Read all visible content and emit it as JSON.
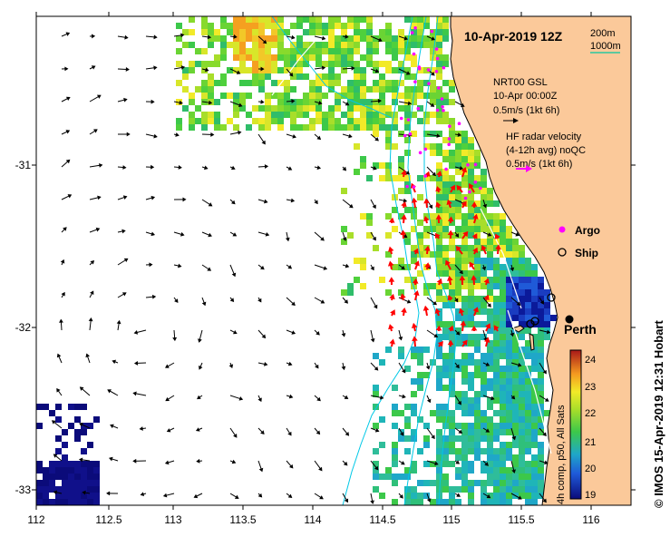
{
  "title": "10-Apr-2019 12Z",
  "depth_legend": {
    "line1": "200m",
    "line2": "1000m"
  },
  "model_legend": {
    "line1": "NRT00 GSL",
    "line2": "10-Apr 00:00Z",
    "line3": "0.5m/s (1kt 6h)"
  },
  "radar_legend": {
    "line1": "HF radar velocity",
    "line2": "(4-12h avg) noQC",
    "line3": "0.5m/s (1kt 6h)"
  },
  "markers": {
    "argo": "Argo",
    "ship": "Ship"
  },
  "city": {
    "name": "Perth",
    "lon": 115.86,
    "lat": -31.95
  },
  "x_ticks": [
    "112",
    "112.5",
    "113",
    "113.5",
    "114",
    "114.5",
    "115",
    "115.5",
    "116"
  ],
  "y_ticks": [
    "-31",
    "-32",
    "-33"
  ],
  "colorbar": {
    "title": "4h comp, p50, All Sats",
    "ticks": [
      "19",
      "20",
      "21",
      "22",
      "23",
      "24"
    ]
  },
  "credit": "© IMOS 15-Apr-2019 12:31 Hobart",
  "colors": {
    "land": "#fbc99a",
    "model_arrow": "#000000",
    "radar_arrow": "#ff0000",
    "legend_radar_arrow": "#ff00ff",
    "argo": "#ff00ff",
    "isobath": "#00c8e6",
    "isobath_legend": "#00c8a0"
  }
}
